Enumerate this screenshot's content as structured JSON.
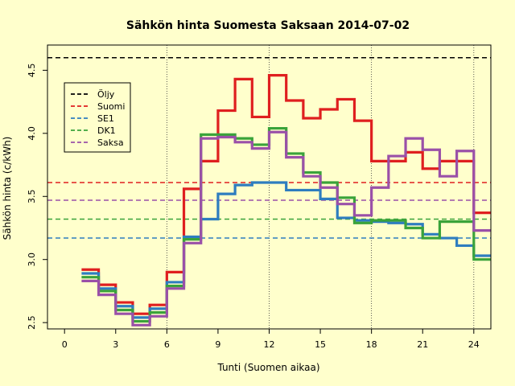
{
  "chart_data": {
    "type": "line",
    "title": "Sähkön hinta Suomesta Saksaan 2014-07-02",
    "xlabel": "Tunti (Suomen aikaa)",
    "ylabel": "Sähkön hinta (c/kWh)",
    "xlim": [
      -1,
      25
    ],
    "ylim": [
      2.45,
      4.7
    ],
    "x_ticks": [
      0,
      3,
      6,
      9,
      12,
      15,
      18,
      21,
      24
    ],
    "y_ticks": [
      2.5,
      3.0,
      3.5,
      4.0,
      4.5
    ],
    "x_tick_labels": [
      "0",
      "3",
      "6",
      "9",
      "12",
      "15",
      "18",
      "21",
      "24"
    ],
    "y_tick_labels": [
      "2.5",
      "3.0",
      "3.5",
      "4.0",
      "4.5"
    ],
    "vertical_gridlines": [
      6,
      12,
      18,
      24
    ],
    "legend_position": "top-left",
    "step_series": [
      {
        "name": "Suomi",
        "color": "#df1f1f",
        "start_hour": 1,
        "values": [
          2.92,
          2.8,
          2.66,
          2.57,
          2.64,
          2.9,
          3.56,
          3.78,
          4.18,
          4.43,
          4.13,
          4.46,
          4.26,
          4.12,
          4.19,
          4.27,
          4.1,
          3.78,
          3.78,
          3.85,
          3.72,
          3.78,
          3.78,
          3.37
        ]
      },
      {
        "name": "SE1",
        "color": "#2e7dbf",
        "start_hour": 1,
        "values": [
          2.89,
          2.77,
          2.63,
          2.54,
          2.61,
          2.82,
          3.18,
          3.32,
          3.52,
          3.59,
          3.61,
          3.61,
          3.55,
          3.55,
          3.48,
          3.33,
          3.31,
          3.3,
          3.29,
          3.28,
          3.2,
          3.17,
          3.11,
          3.03
        ]
      },
      {
        "name": "DK1",
        "color": "#3aa33a",
        "start_hour": 1,
        "values": [
          2.86,
          2.75,
          2.6,
          2.51,
          2.58,
          2.79,
          3.16,
          3.99,
          3.99,
          3.96,
          3.91,
          4.04,
          3.84,
          3.69,
          3.61,
          3.49,
          3.29,
          3.31,
          3.31,
          3.25,
          3.17,
          3.3,
          3.3,
          3.0
        ]
      },
      {
        "name": "Saksa",
        "color": "#9a50a8",
        "start_hour": 1,
        "values": [
          2.83,
          2.72,
          2.57,
          2.48,
          2.55,
          2.77,
          3.13,
          3.96,
          3.97,
          3.93,
          3.88,
          4.01,
          3.81,
          3.66,
          3.57,
          3.44,
          3.35,
          3.57,
          3.82,
          3.96,
          3.87,
          3.66,
          3.86,
          3.23
        ]
      }
    ],
    "reference_lines": [
      {
        "name": "Öljy",
        "color": "#000000",
        "y": 4.6
      },
      {
        "name": "Suomi",
        "color": "#df1f1f",
        "y": 3.61
      },
      {
        "name": "SE1",
        "color": "#2e7dbf",
        "y": 3.17
      },
      {
        "name": "DK1",
        "color": "#3aa33a",
        "y": 3.32
      },
      {
        "name": "Saksa",
        "color": "#9a50a8",
        "y": 3.47
      }
    ],
    "legend": [
      {
        "label": "Öljy",
        "color": "#000000"
      },
      {
        "label": "Suomi",
        "color": "#df1f1f"
      },
      {
        "label": "SE1",
        "color": "#2e7dbf"
      },
      {
        "label": "DK1",
        "color": "#3aa33a"
      },
      {
        "label": "Saksa",
        "color": "#9a50a8"
      }
    ]
  }
}
